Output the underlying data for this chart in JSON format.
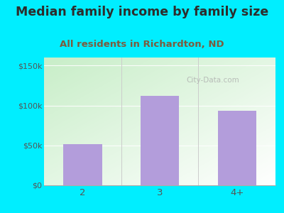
{
  "title": "Median family income by family size",
  "subtitle": "All residents in Richardton, ND",
  "categories": [
    "2",
    "3",
    "4+"
  ],
  "values": [
    52000,
    112000,
    93000
  ],
  "bar_color": "#b39ddb",
  "ylim": [
    0,
    160000
  ],
  "yticks": [
    0,
    50000,
    100000,
    150000
  ],
  "ytick_labels": [
    "$0",
    "$50k",
    "$100k",
    "$150k"
  ],
  "background_outer": "#00eeff",
  "title_color": "#2d2d2d",
  "subtitle_color": "#7b5c3e",
  "tick_color": "#555555",
  "watermark": "City-Data.com",
  "title_fontsize": 12.5,
  "subtitle_fontsize": 9.5,
  "plot_bg_green": "#c8eec8",
  "plot_bg_white": "#ffffff",
  "gridline_color": "#dddddd"
}
